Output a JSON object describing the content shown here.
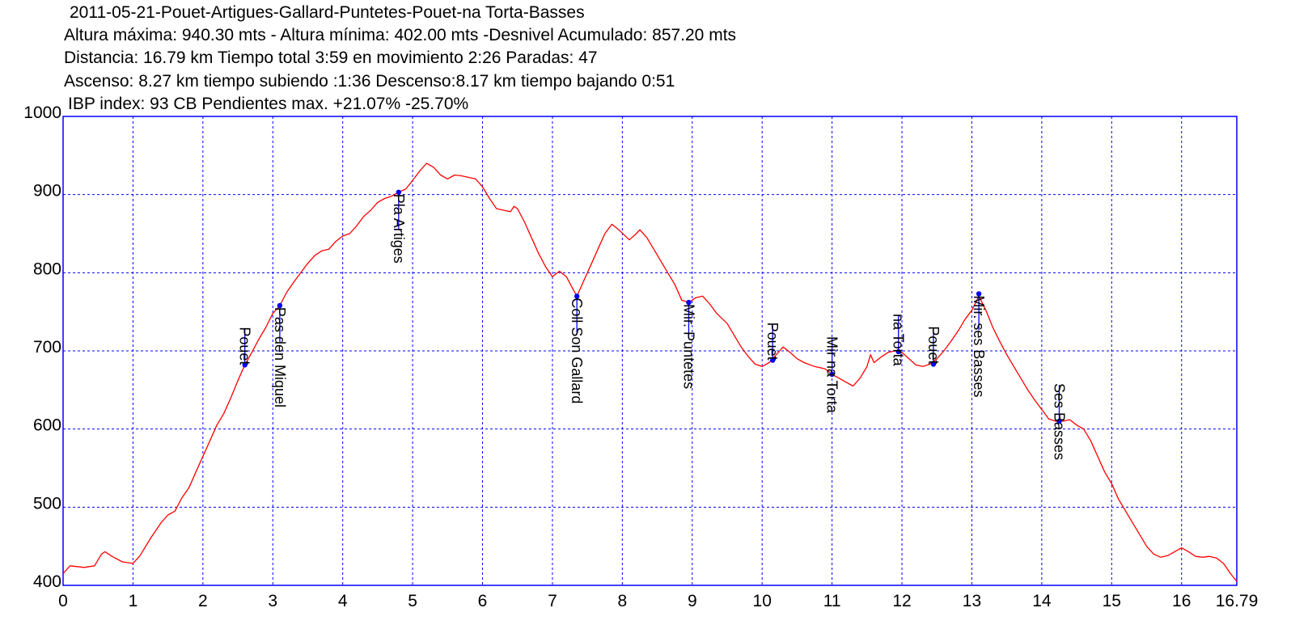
{
  "header": {
    "title": "2011-05-21-Pouet-Artigues-Gallard-Puntetes-Pouet-na Torta-Basses",
    "line1": "Altura máxima: 940.30 mts - Altura mínima: 402.00 mts -Desnivel Acumulado: 857.20 mts",
    "line2": "Distancia: 16.79 km  Tiempo total 3:59  en movimiento 2:26 Paradas: 47",
    "line3": "Ascenso: 8.27 km  tiempo subiendo :1:36  Descenso:8.17 km tiempo bajando 0:51",
    "line4": "IBP index: 93 CB  Pendientes max. +21.07%  -25.70%"
  },
  "chart_data": {
    "type": "line",
    "title": "2011-05-21-Pouet-Artigues-Gallard-Puntetes-Pouet-na Torta-Basses",
    "xlim": [
      0,
      16.79
    ],
    "ylim": [
      400,
      1000
    ],
    "x_ticks": [
      "0",
      "1",
      "2",
      "3",
      "4",
      "5",
      "6",
      "7",
      "8",
      "9",
      "10",
      "11",
      "12",
      "13",
      "14",
      "15",
      "16",
      "16.79"
    ],
    "y_ticks": [
      "400",
      "500",
      "600",
      "700",
      "800",
      "900",
      "1000"
    ],
    "grid": true,
    "colors": {
      "profile": "#ff0000",
      "frame": "#0000ff",
      "grid": "#0000ff",
      "waypoint": "#0000ff"
    },
    "series": [
      {
        "points": [
          [
            0,
            415
          ],
          [
            0.1,
            425
          ],
          [
            0.3,
            423
          ],
          [
            0.45,
            425
          ],
          [
            0.55,
            440
          ],
          [
            0.6,
            443
          ],
          [
            0.7,
            437
          ],
          [
            0.85,
            430
          ],
          [
            1.0,
            428
          ],
          [
            1.1,
            438
          ],
          [
            1.25,
            460
          ],
          [
            1.4,
            480
          ],
          [
            1.5,
            490
          ],
          [
            1.6,
            495
          ],
          [
            1.7,
            512
          ],
          [
            1.8,
            525
          ],
          [
            1.9,
            545
          ],
          [
            2.0,
            565
          ],
          [
            2.1,
            585
          ],
          [
            2.2,
            605
          ],
          [
            2.3,
            620
          ],
          [
            2.4,
            640
          ],
          [
            2.5,
            662
          ],
          [
            2.6,
            682
          ],
          [
            2.7,
            698
          ],
          [
            2.8,
            715
          ],
          [
            2.9,
            730
          ],
          [
            3.0,
            748
          ],
          [
            3.1,
            758
          ],
          [
            3.2,
            775
          ],
          [
            3.3,
            788
          ],
          [
            3.4,
            800
          ],
          [
            3.5,
            812
          ],
          [
            3.6,
            822
          ],
          [
            3.7,
            828
          ],
          [
            3.8,
            830
          ],
          [
            3.9,
            840
          ],
          [
            4.0,
            847
          ],
          [
            4.1,
            850
          ],
          [
            4.2,
            860
          ],
          [
            4.3,
            872
          ],
          [
            4.4,
            880
          ],
          [
            4.5,
            890
          ],
          [
            4.6,
            895
          ],
          [
            4.7,
            898
          ],
          [
            4.8,
            903
          ],
          [
            4.9,
            907
          ],
          [
            5.0,
            918
          ],
          [
            5.1,
            930
          ],
          [
            5.2,
            940
          ],
          [
            5.3,
            935
          ],
          [
            5.4,
            925
          ],
          [
            5.5,
            920
          ],
          [
            5.6,
            925
          ],
          [
            5.7,
            924
          ],
          [
            5.8,
            922
          ],
          [
            5.9,
            920
          ],
          [
            6.0,
            910
          ],
          [
            6.1,
            895
          ],
          [
            6.2,
            882
          ],
          [
            6.3,
            880
          ],
          [
            6.4,
            878
          ],
          [
            6.45,
            885
          ],
          [
            6.5,
            882
          ],
          [
            6.6,
            865
          ],
          [
            6.7,
            845
          ],
          [
            6.8,
            825
          ],
          [
            6.9,
            808
          ],
          [
            7.0,
            795
          ],
          [
            7.1,
            802
          ],
          [
            7.2,
            795
          ],
          [
            7.3,
            778
          ],
          [
            7.35,
            770
          ],
          [
            7.45,
            790
          ],
          [
            7.55,
            810
          ],
          [
            7.65,
            830
          ],
          [
            7.75,
            850
          ],
          [
            7.85,
            862
          ],
          [
            7.95,
            855
          ],
          [
            8.1,
            842
          ],
          [
            8.2,
            850
          ],
          [
            8.25,
            855
          ],
          [
            8.35,
            845
          ],
          [
            8.45,
            830
          ],
          [
            8.55,
            815
          ],
          [
            8.65,
            800
          ],
          [
            8.75,
            785
          ],
          [
            8.85,
            765
          ],
          [
            8.95,
            762
          ],
          [
            9.05,
            768
          ],
          [
            9.15,
            770
          ],
          [
            9.25,
            760
          ],
          [
            9.35,
            748
          ],
          [
            9.5,
            735
          ],
          [
            9.6,
            720
          ],
          [
            9.7,
            705
          ],
          [
            9.8,
            693
          ],
          [
            9.9,
            683
          ],
          [
            10.0,
            680
          ],
          [
            10.1,
            685
          ],
          [
            10.15,
            690
          ],
          [
            10.25,
            700
          ],
          [
            10.3,
            705
          ],
          [
            10.4,
            698
          ],
          [
            10.5,
            690
          ],
          [
            10.6,
            685
          ],
          [
            10.75,
            680
          ],
          [
            10.9,
            677
          ],
          [
            11.0,
            670
          ],
          [
            11.1,
            665
          ],
          [
            11.2,
            660
          ],
          [
            11.3,
            655
          ],
          [
            11.4,
            665
          ],
          [
            11.5,
            680
          ],
          [
            11.55,
            695
          ],
          [
            11.6,
            685
          ],
          [
            11.7,
            692
          ],
          [
            11.8,
            698
          ],
          [
            11.9,
            700
          ],
          [
            12.0,
            698
          ],
          [
            12.1,
            690
          ],
          [
            12.2,
            682
          ],
          [
            12.3,
            680
          ],
          [
            12.4,
            683
          ],
          [
            12.5,
            690
          ],
          [
            12.6,
            700
          ],
          [
            12.7,
            712
          ],
          [
            12.8,
            725
          ],
          [
            12.9,
            740
          ],
          [
            13.0,
            752
          ],
          [
            13.1,
            770
          ],
          [
            13.2,
            752
          ],
          [
            13.3,
            730
          ],
          [
            13.4,
            712
          ],
          [
            13.5,
            695
          ],
          [
            13.6,
            680
          ],
          [
            13.7,
            665
          ],
          [
            13.8,
            650
          ],
          [
            13.9,
            637
          ],
          [
            14.0,
            625
          ],
          [
            14.1,
            613
          ],
          [
            14.2,
            610
          ],
          [
            14.3,
            610
          ],
          [
            14.4,
            612
          ],
          [
            14.5,
            605
          ],
          [
            14.6,
            600
          ],
          [
            14.7,
            585
          ],
          [
            14.8,
            565
          ],
          [
            14.9,
            545
          ],
          [
            15.0,
            530
          ],
          [
            15.1,
            510
          ],
          [
            15.2,
            495
          ],
          [
            15.3,
            480
          ],
          [
            15.4,
            465
          ],
          [
            15.5,
            450
          ],
          [
            15.6,
            440
          ],
          [
            15.7,
            436
          ],
          [
            15.8,
            438
          ],
          [
            15.9,
            443
          ],
          [
            16.0,
            448
          ],
          [
            16.1,
            443
          ],
          [
            16.2,
            437
          ],
          [
            16.3,
            436
          ],
          [
            16.4,
            437
          ],
          [
            16.5,
            435
          ],
          [
            16.6,
            428
          ],
          [
            16.7,
            415
          ],
          [
            16.79,
            405
          ]
        ]
      }
    ],
    "waypoints": [
      {
        "name": "Pouet",
        "x": 2.6,
        "y": 682,
        "label_side": "above"
      },
      {
        "name": "Pas den Miquel",
        "x": 3.1,
        "y": 758,
        "label_side": "below"
      },
      {
        "name": "Pla Artiges",
        "x": 4.8,
        "y": 903,
        "label_side": "below"
      },
      {
        "name": "Coll Son Gallard",
        "x": 7.35,
        "y": 770,
        "label_side": "below"
      },
      {
        "name": "Mir. Puntetes",
        "x": 8.95,
        "y": 762,
        "label_side": "below"
      },
      {
        "name": "Pouet",
        "x": 10.15,
        "y": 688,
        "label_side": "above"
      },
      {
        "name": "Mir na Torta",
        "x": 11.0,
        "y": 670,
        "label_side": "above"
      },
      {
        "name": "na Torta",
        "x": 11.95,
        "y": 699,
        "label_side": "above"
      },
      {
        "name": "Pouet",
        "x": 12.45,
        "y": 683,
        "label_side": "above"
      },
      {
        "name": "Mir. ses Basses",
        "x": 13.1,
        "y": 773,
        "label_side": "below"
      },
      {
        "name": "Ses Basses",
        "x": 14.25,
        "y": 610,
        "label_side": "above"
      }
    ]
  }
}
